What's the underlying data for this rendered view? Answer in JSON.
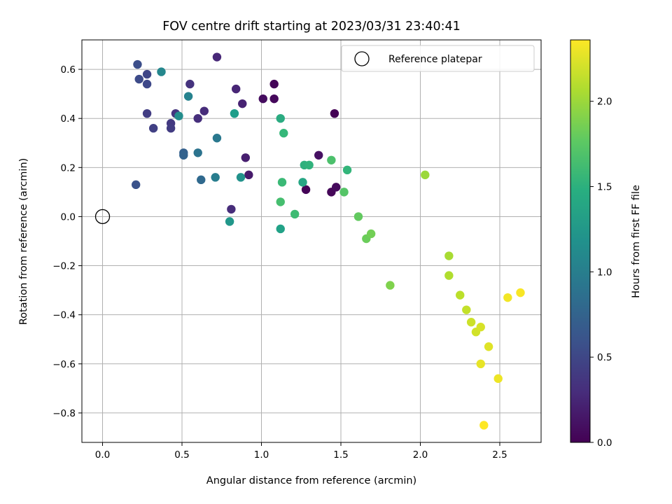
{
  "chart_data": {
    "type": "scatter",
    "title": "FOV centre drift starting at 2023/03/31 23:40:41",
    "xlabel": "Angular distance from reference (arcmin)",
    "ylabel": "Rotation from reference (arcmin)",
    "xlim": [
      -0.13,
      2.76
    ],
    "ylim": [
      -0.92,
      0.72
    ],
    "xticks": [
      0.0,
      0.5,
      1.0,
      1.5,
      2.0,
      2.5
    ],
    "xtick_labels": [
      "0.0",
      "0.5",
      "1.0",
      "1.5",
      "2.0",
      "2.5"
    ],
    "yticks": [
      0.6,
      0.4,
      0.2,
      0.0,
      -0.2,
      -0.4,
      -0.6,
      -0.8
    ],
    "ytick_labels": [
      "0.6",
      "0.4",
      "0.2",
      "0.0",
      "−0.2",
      "−0.4",
      "−0.6",
      "−0.8"
    ],
    "grid": true,
    "colormap": "viridis",
    "colorbar": {
      "label": "Hours from first FF file",
      "range": [
        0.0,
        2.36
      ],
      "ticks": [
        0.0,
        0.5,
        1.0,
        1.5,
        2.0
      ],
      "tick_labels": [
        "0.0",
        "0.5",
        "1.0",
        "1.5",
        "2.0"
      ]
    },
    "legend": {
      "position": "top-right",
      "entries": [
        "Reference platepar"
      ]
    },
    "reference_point": {
      "x": 0.0,
      "y": 0.0
    },
    "points": [
      {
        "x": 1.46,
        "y": 0.42,
        "c": 0.0
      },
      {
        "x": 1.08,
        "y": 0.54,
        "c": 0.03
      },
      {
        "x": 1.08,
        "y": 0.48,
        "c": 0.05
      },
      {
        "x": 1.01,
        "y": 0.48,
        "c": 0.08
      },
      {
        "x": 1.28,
        "y": 0.11,
        "c": 0.02
      },
      {
        "x": 1.44,
        "y": 0.1,
        "c": 0.04
      },
      {
        "x": 1.47,
        "y": 0.12,
        "c": 0.06
      },
      {
        "x": 1.36,
        "y": 0.25,
        "c": 0.1
      },
      {
        "x": 0.92,
        "y": 0.17,
        "c": 0.17
      },
      {
        "x": 0.9,
        "y": 0.24,
        "c": 0.2
      },
      {
        "x": 0.88,
        "y": 0.46,
        "c": 0.22
      },
      {
        "x": 0.84,
        "y": 0.52,
        "c": 0.25
      },
      {
        "x": 0.72,
        "y": 0.65,
        "c": 0.26
      },
      {
        "x": 0.81,
        "y": 0.03,
        "c": 0.3
      },
      {
        "x": 0.64,
        "y": 0.43,
        "c": 0.3
      },
      {
        "x": 0.6,
        "y": 0.4,
        "c": 0.32
      },
      {
        "x": 0.55,
        "y": 0.54,
        "c": 0.35
      },
      {
        "x": 0.46,
        "y": 0.42,
        "c": 0.36
      },
      {
        "x": 0.43,
        "y": 0.38,
        "c": 0.4
      },
      {
        "x": 0.43,
        "y": 0.36,
        "c": 0.42
      },
      {
        "x": 0.28,
        "y": 0.42,
        "c": 0.43
      },
      {
        "x": 0.32,
        "y": 0.36,
        "c": 0.45
      },
      {
        "x": 0.28,
        "y": 0.58,
        "c": 0.5
      },
      {
        "x": 0.28,
        "y": 0.54,
        "c": 0.52
      },
      {
        "x": 0.23,
        "y": 0.56,
        "c": 0.54
      },
      {
        "x": 0.22,
        "y": 0.62,
        "c": 0.57
      },
      {
        "x": 0.21,
        "y": 0.13,
        "c": 0.6
      },
      {
        "x": 0.51,
        "y": 0.26,
        "c": 0.72
      },
      {
        "x": 0.51,
        "y": 0.25,
        "c": 0.74
      },
      {
        "x": 0.62,
        "y": 0.15,
        "c": 0.8
      },
      {
        "x": 0.6,
        "y": 0.26,
        "c": 0.9
      },
      {
        "x": 0.72,
        "y": 0.32,
        "c": 0.95
      },
      {
        "x": 0.71,
        "y": 0.16,
        "c": 1.0
      },
      {
        "x": 0.54,
        "y": 0.49,
        "c": 1.05
      },
      {
        "x": 0.37,
        "y": 0.59,
        "c": 1.1
      },
      {
        "x": 0.48,
        "y": 0.41,
        "c": 1.15
      },
      {
        "x": 0.87,
        "y": 0.16,
        "c": 1.2
      },
      {
        "x": 0.8,
        "y": -0.02,
        "c": 1.25
      },
      {
        "x": 0.83,
        "y": 0.42,
        "c": 1.3
      },
      {
        "x": 1.12,
        "y": -0.05,
        "c": 1.35
      },
      {
        "x": 1.26,
        "y": 0.14,
        "c": 1.4
      },
      {
        "x": 1.12,
        "y": 0.4,
        "c": 1.45
      },
      {
        "x": 1.27,
        "y": 0.21,
        "c": 1.5
      },
      {
        "x": 1.3,
        "y": 0.21,
        "c": 1.52
      },
      {
        "x": 1.54,
        "y": 0.19,
        "c": 1.55
      },
      {
        "x": 1.14,
        "y": 0.34,
        "c": 1.57
      },
      {
        "x": 1.13,
        "y": 0.14,
        "c": 1.6
      },
      {
        "x": 1.21,
        "y": 0.01,
        "c": 1.62
      },
      {
        "x": 1.12,
        "y": 0.06,
        "c": 1.65
      },
      {
        "x": 1.44,
        "y": 0.23,
        "c": 1.68
      },
      {
        "x": 1.52,
        "y": 0.1,
        "c": 1.72
      },
      {
        "x": 1.61,
        "y": 0.0,
        "c": 1.78
      },
      {
        "x": 1.66,
        "y": -0.09,
        "c": 1.82
      },
      {
        "x": 1.69,
        "y": -0.07,
        "c": 1.85
      },
      {
        "x": 1.81,
        "y": -0.28,
        "c": 1.9
      },
      {
        "x": 2.03,
        "y": 0.17,
        "c": 2.0
      },
      {
        "x": 2.18,
        "y": -0.16,
        "c": 2.05
      },
      {
        "x": 2.18,
        "y": -0.24,
        "c": 2.08
      },
      {
        "x": 2.25,
        "y": -0.32,
        "c": 2.12
      },
      {
        "x": 2.29,
        "y": -0.38,
        "c": 2.15
      },
      {
        "x": 2.32,
        "y": -0.43,
        "c": 2.18
      },
      {
        "x": 2.35,
        "y": -0.47,
        "c": 2.2
      },
      {
        "x": 2.38,
        "y": -0.45,
        "c": 2.22
      },
      {
        "x": 2.43,
        "y": -0.53,
        "c": 2.25
      },
      {
        "x": 2.38,
        "y": -0.6,
        "c": 2.28
      },
      {
        "x": 2.49,
        "y": -0.66,
        "c": 2.3
      },
      {
        "x": 2.55,
        "y": -0.33,
        "c": 2.32
      },
      {
        "x": 2.63,
        "y": -0.31,
        "c": 2.34
      },
      {
        "x": 2.4,
        "y": -0.85,
        "c": 2.36
      }
    ]
  }
}
